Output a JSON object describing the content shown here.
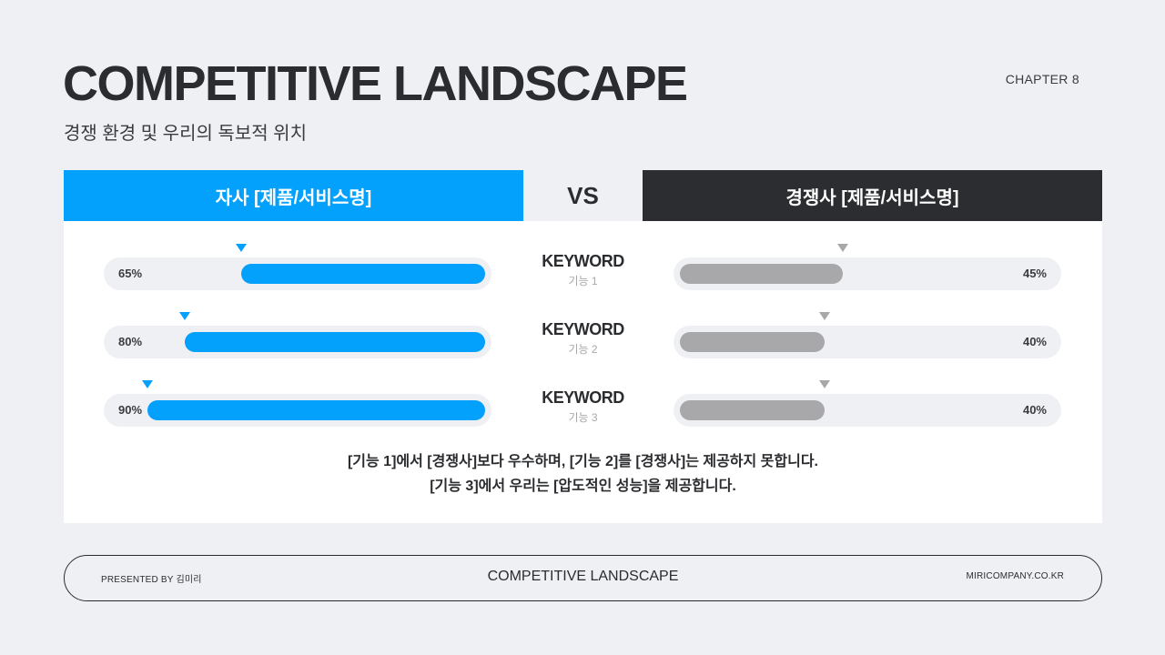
{
  "header": {
    "title": "COMPETITIVE LANDSCAPE",
    "subtitle": "경쟁 환경 및 우리의 독보적 위치",
    "chapter": "CHAPTER 8"
  },
  "comparison": {
    "left_label": "자사 [제품/서비스명]",
    "vs_label": "VS",
    "right_label": "경쟁사 [제품/서비스명]",
    "left_color": "#03a0fc",
    "right_color": "#2c2d30",
    "competitor_color": "#a8a8aa",
    "rows": [
      {
        "keyword": "KEYWORD",
        "feature": "기능 1",
        "ours_label": "65%",
        "ours_value": 0.65,
        "theirs_label": "45%",
        "theirs_value": 0.45
      },
      {
        "keyword": "KEYWORD",
        "feature": "기능 2",
        "ours_label": "80%",
        "ours_value": 0.8,
        "theirs_label": "40%",
        "theirs_value": 0.4
      },
      {
        "keyword": "KEYWORD",
        "feature": "기능 3",
        "ours_label": "90%",
        "ours_value": 0.9,
        "theirs_label": "40%",
        "theirs_value": 0.4
      }
    ],
    "summary_line1": "[기능 1]에서 [경쟁사]보다 우수하며, [기능 2]를 [경쟁사]는 제공하지 못합니다.",
    "summary_line2": "[기능 3]에서 우리는 [압도적인 성능]을 제공합니다."
  },
  "footer": {
    "presenter": "PRESENTED BY 김미리",
    "center": "COMPETITIVE LANDSCAPE",
    "site": "MIRICOMPANY.CO.KR"
  }
}
